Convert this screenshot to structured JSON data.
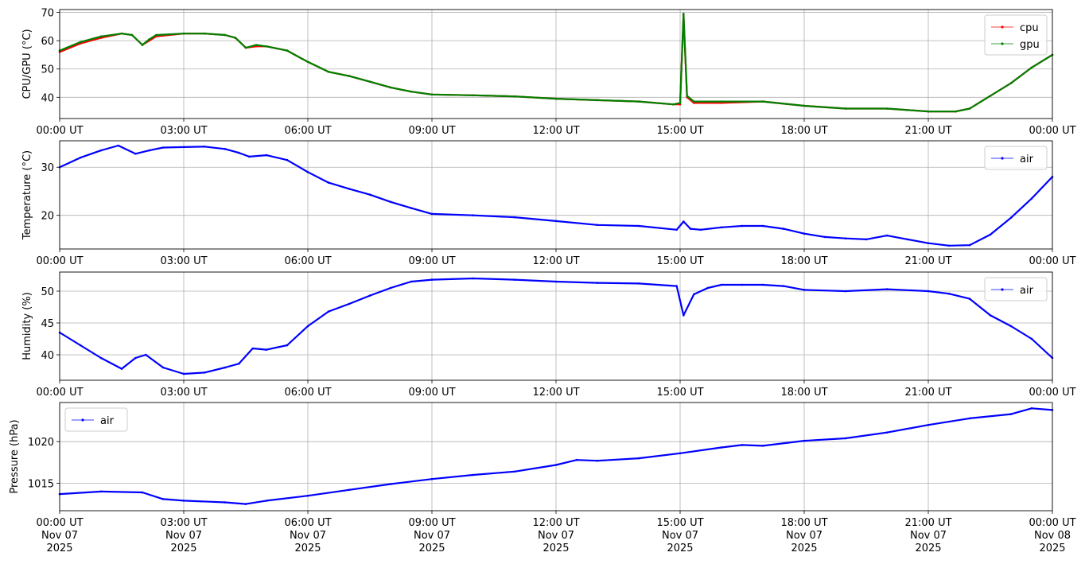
{
  "chart_data": [
    {
      "type": "line",
      "ylabel": "CPU/GPU (°C)",
      "ylim": [
        32.5,
        71
      ],
      "yticks": [
        40,
        50,
        60,
        70
      ],
      "xlim": [
        "2025-11-07 00:00",
        "2025-11-08 00:00"
      ],
      "xtick_labels": [
        "00:00 UT",
        "03:00 UT",
        "06:00 UT",
        "09:00 UT",
        "12:00 UT",
        "15:00 UT",
        "18:00 UT",
        "21:00 UT",
        "00:00 UT"
      ],
      "grid": true,
      "legend": "top-right",
      "series": [
        {
          "name": "cpu",
          "color": "#ff0000",
          "x": [
            "2025-11-07 00:00",
            "2025-11-07 00:30",
            "2025-11-07 01:00",
            "2025-11-07 01:30",
            "2025-11-07 01:45",
            "2025-11-07 02:00",
            "2025-11-07 02:10",
            "2025-11-07 02:20",
            "2025-11-07 03:00",
            "2025-11-07 03:30",
            "2025-11-07 04:00",
            "2025-11-07 04:15",
            "2025-11-07 04:30",
            "2025-11-07 04:45",
            "2025-11-07 05:00",
            "2025-11-07 05:30",
            "2025-11-07 06:00",
            "2025-11-07 06:30",
            "2025-11-07 07:00",
            "2025-11-07 07:30",
            "2025-11-07 08:00",
            "2025-11-07 08:30",
            "2025-11-07 09:00",
            "2025-11-07 10:00",
            "2025-11-07 11:00",
            "2025-11-07 12:00",
            "2025-11-07 13:00",
            "2025-11-07 14:00",
            "2025-11-07 14:50",
            "2025-11-07 15:00",
            "2025-11-07 15:05",
            "2025-11-07 15:10",
            "2025-11-07 15:20",
            "2025-11-07 16:00",
            "2025-11-07 17:00",
            "2025-11-07 18:00",
            "2025-11-07 19:00",
            "2025-11-07 20:00",
            "2025-11-07 21:00",
            "2025-11-07 21:40",
            "2025-11-07 22:00",
            "2025-11-07 22:30",
            "2025-11-07 23:00",
            "2025-11-07 23:30",
            "2025-11-08 00:00"
          ],
          "values": [
            56,
            59,
            61,
            62.5,
            62,
            58.5,
            60,
            61.5,
            62.5,
            62.5,
            62,
            61,
            57.5,
            58,
            58,
            56.5,
            52.5,
            49,
            47.5,
            45.5,
            43.5,
            42,
            41,
            40.7,
            40.3,
            39.5,
            39,
            38.5,
            37.5,
            37.5,
            69,
            40,
            38,
            38,
            38.5,
            37,
            36,
            36,
            35,
            35,
            36,
            40.5,
            45,
            50.5,
            55
          ]
        },
        {
          "name": "gpu",
          "color": "#008000",
          "x": [
            "2025-11-07 00:00",
            "2025-11-07 00:30",
            "2025-11-07 01:00",
            "2025-11-07 01:30",
            "2025-11-07 01:45",
            "2025-11-07 02:00",
            "2025-11-07 02:10",
            "2025-11-07 02:20",
            "2025-11-07 03:00",
            "2025-11-07 03:30",
            "2025-11-07 04:00",
            "2025-11-07 04:15",
            "2025-11-07 04:30",
            "2025-11-07 04:45",
            "2025-11-07 05:00",
            "2025-11-07 05:30",
            "2025-11-07 06:00",
            "2025-11-07 06:30",
            "2025-11-07 07:00",
            "2025-11-07 07:30",
            "2025-11-07 08:00",
            "2025-11-07 08:30",
            "2025-11-07 09:00",
            "2025-11-07 10:00",
            "2025-11-07 11:00",
            "2025-11-07 12:00",
            "2025-11-07 13:00",
            "2025-11-07 14:00",
            "2025-11-07 14:50",
            "2025-11-07 15:00",
            "2025-11-07 15:05",
            "2025-11-07 15:10",
            "2025-11-07 15:20",
            "2025-11-07 16:00",
            "2025-11-07 17:00",
            "2025-11-07 18:00",
            "2025-11-07 19:00",
            "2025-11-07 20:00",
            "2025-11-07 21:00",
            "2025-11-07 21:40",
            "2025-11-07 22:00",
            "2025-11-07 22:30",
            "2025-11-07 23:00",
            "2025-11-07 23:30",
            "2025-11-08 00:00"
          ],
          "values": [
            56.5,
            59.5,
            61.5,
            62.5,
            62,
            58.5,
            60.5,
            62,
            62.5,
            62.5,
            62,
            61,
            57.5,
            58.5,
            58,
            56.5,
            52.5,
            49,
            47.5,
            45.5,
            43.5,
            42,
            41,
            40.7,
            40.3,
            39.5,
            39,
            38.5,
            37.5,
            38,
            69.5,
            40.5,
            38.5,
            38.5,
            38.5,
            37,
            36,
            36,
            35,
            35,
            36,
            40.5,
            45,
            50.5,
            55
          ]
        }
      ]
    },
    {
      "type": "line",
      "ylabel": "Temperature (°C)",
      "ylim": [
        13,
        35.5
      ],
      "yticks": [
        20,
        30
      ],
      "xlim": [
        "2025-11-07 00:00",
        "2025-11-08 00:00"
      ],
      "xtick_labels": [
        "00:00 UT",
        "03:00 UT",
        "06:00 UT",
        "09:00 UT",
        "12:00 UT",
        "15:00 UT",
        "18:00 UT",
        "21:00 UT",
        "00:00 UT"
      ],
      "grid": true,
      "legend": "top-right",
      "series": [
        {
          "name": "air",
          "color": "#0000ff",
          "x": [
            "2025-11-07 00:00",
            "2025-11-07 00:30",
            "2025-11-07 01:00",
            "2025-11-07 01:25",
            "2025-11-07 01:50",
            "2025-11-07 02:10",
            "2025-11-07 02:30",
            "2025-11-07 03:00",
            "2025-11-07 03:30",
            "2025-11-07 04:00",
            "2025-11-07 04:20",
            "2025-11-07 04:35",
            "2025-11-07 05:00",
            "2025-11-07 05:30",
            "2025-11-07 06:00",
            "2025-11-07 06:30",
            "2025-11-07 07:00",
            "2025-11-07 07:30",
            "2025-11-07 08:00",
            "2025-11-07 08:30",
            "2025-11-07 09:00",
            "2025-11-07 10:00",
            "2025-11-07 11:00",
            "2025-11-07 12:00",
            "2025-11-07 13:00",
            "2025-11-07 14:00",
            "2025-11-07 14:55",
            "2025-11-07 15:05",
            "2025-11-07 15:15",
            "2025-11-07 15:30",
            "2025-11-07 16:00",
            "2025-11-07 16:30",
            "2025-11-07 17:00",
            "2025-11-07 17:30",
            "2025-11-07 18:00",
            "2025-11-07 18:30",
            "2025-11-07 19:00",
            "2025-11-07 19:30",
            "2025-11-07 20:00",
            "2025-11-07 20:30",
            "2025-11-07 21:00",
            "2025-11-07 21:30",
            "2025-11-07 22:00",
            "2025-11-07 22:30",
            "2025-11-07 23:00",
            "2025-11-07 23:30",
            "2025-11-08 00:00"
          ],
          "values": [
            30,
            32,
            33.5,
            34.5,
            32.8,
            33.5,
            34.1,
            34.2,
            34.3,
            33.8,
            33,
            32.2,
            32.5,
            31.5,
            29,
            26.8,
            25.5,
            24.3,
            22.8,
            21.5,
            20.3,
            20,
            19.6,
            18.8,
            18,
            17.8,
            17,
            18.7,
            17.2,
            17,
            17.5,
            17.8,
            17.8,
            17.2,
            16.2,
            15.5,
            15.2,
            15,
            15.8,
            15,
            14.2,
            13.7,
            13.8,
            16,
            19.5,
            23.5,
            28
          ]
        }
      ]
    },
    {
      "type": "line",
      "ylabel": "Humidity (%)",
      "ylim": [
        36,
        53
      ],
      "yticks": [
        40,
        45,
        50
      ],
      "xlim": [
        "2025-11-07 00:00",
        "2025-11-08 00:00"
      ],
      "xtick_labels": [
        "00:00 UT",
        "03:00 UT",
        "06:00 UT",
        "09:00 UT",
        "12:00 UT",
        "15:00 UT",
        "18:00 UT",
        "21:00 UT",
        "00:00 UT"
      ],
      "grid": true,
      "legend": "top-right",
      "series": [
        {
          "name": "air",
          "color": "#0000ff",
          "x": [
            "2025-11-07 00:00",
            "2025-11-07 00:30",
            "2025-11-07 01:00",
            "2025-11-07 01:30",
            "2025-11-07 01:50",
            "2025-11-07 02:05",
            "2025-11-07 02:30",
            "2025-11-07 03:00",
            "2025-11-07 03:30",
            "2025-11-07 04:00",
            "2025-11-07 04:20",
            "2025-11-07 04:40",
            "2025-11-07 05:00",
            "2025-11-07 05:30",
            "2025-11-07 06:00",
            "2025-11-07 06:30",
            "2025-11-07 07:00",
            "2025-11-07 07:30",
            "2025-11-07 08:00",
            "2025-11-07 08:30",
            "2025-11-07 09:00",
            "2025-11-07 10:00",
            "2025-11-07 11:00",
            "2025-11-07 12:00",
            "2025-11-07 13:00",
            "2025-11-07 14:00",
            "2025-11-07 14:55",
            "2025-11-07 15:05",
            "2025-11-07 15:20",
            "2025-11-07 15:40",
            "2025-11-07 16:00",
            "2025-11-07 16:30",
            "2025-11-07 17:00",
            "2025-11-07 17:30",
            "2025-11-07 18:00",
            "2025-11-07 19:00",
            "2025-11-07 20:00",
            "2025-11-07 21:00",
            "2025-11-07 21:30",
            "2025-11-07 22:00",
            "2025-11-07 22:30",
            "2025-11-07 23:00",
            "2025-11-07 23:30",
            "2025-11-08 00:00"
          ],
          "values": [
            43.5,
            41.5,
            39.5,
            37.8,
            39.5,
            40,
            38,
            37,
            37.2,
            38,
            38.6,
            41,
            40.8,
            41.5,
            44.5,
            46.8,
            48,
            49.3,
            50.5,
            51.5,
            51.8,
            52,
            51.8,
            51.5,
            51.3,
            51.2,
            50.8,
            46.2,
            49.5,
            50.5,
            51,
            51,
            51,
            50.8,
            50.2,
            50,
            50.3,
            50,
            49.6,
            48.8,
            46.2,
            44.5,
            42.5,
            39.5
          ]
        }
      ]
    },
    {
      "type": "line",
      "ylabel": "Pressure (hPa)",
      "ylim": [
        1011.7,
        1024.7
      ],
      "yticks": [
        1015,
        1020
      ],
      "xlim": [
        "2025-11-07 00:00",
        "2025-11-08 00:00"
      ],
      "xtick_labels": [
        "00:00 UT\nNov 07\n2025",
        "03:00 UT\nNov 07\n2025",
        "06:00 UT\nNov 07\n2025",
        "09:00 UT\nNov 07\n2025",
        "12:00 UT\nNov 07\n2025",
        "15:00 UT\nNov 07\n2025",
        "18:00 UT\nNov 07\n2025",
        "21:00 UT\nNov 07\n2025",
        "00:00 UT\nNov 08\n2025"
      ],
      "grid": true,
      "legend": "top-left",
      "series": [
        {
          "name": "air",
          "color": "#0000ff",
          "x": [
            "2025-11-07 00:00",
            "2025-11-07 01:00",
            "2025-11-07 02:00",
            "2025-11-07 02:30",
            "2025-11-07 03:00",
            "2025-11-07 04:00",
            "2025-11-07 04:30",
            "2025-11-07 05:00",
            "2025-11-07 06:00",
            "2025-11-07 07:00",
            "2025-11-07 08:00",
            "2025-11-07 09:00",
            "2025-11-07 10:00",
            "2025-11-07 11:00",
            "2025-11-07 12:00",
            "2025-11-07 12:30",
            "2025-11-07 13:00",
            "2025-11-07 14:00",
            "2025-11-07 15:00",
            "2025-11-07 16:00",
            "2025-11-07 16:30",
            "2025-11-07 17:00",
            "2025-11-07 18:00",
            "2025-11-07 19:00",
            "2025-11-07 20:00",
            "2025-11-07 21:00",
            "2025-11-07 22:00",
            "2025-11-07 23:00",
            "2025-11-07 23:30",
            "2025-11-08 00:00"
          ],
          "values": [
            1013.7,
            1014,
            1013.9,
            1013.1,
            1012.9,
            1012.7,
            1012.5,
            1012.9,
            1013.5,
            1014.2,
            1014.9,
            1015.5,
            1016,
            1016.4,
            1017.2,
            1017.8,
            1017.7,
            1018,
            1018.6,
            1019.3,
            1019.6,
            1019.5,
            1020.1,
            1020.4,
            1021.1,
            1022,
            1022.8,
            1023.3,
            1024,
            1023.8
          ]
        }
      ]
    }
  ]
}
